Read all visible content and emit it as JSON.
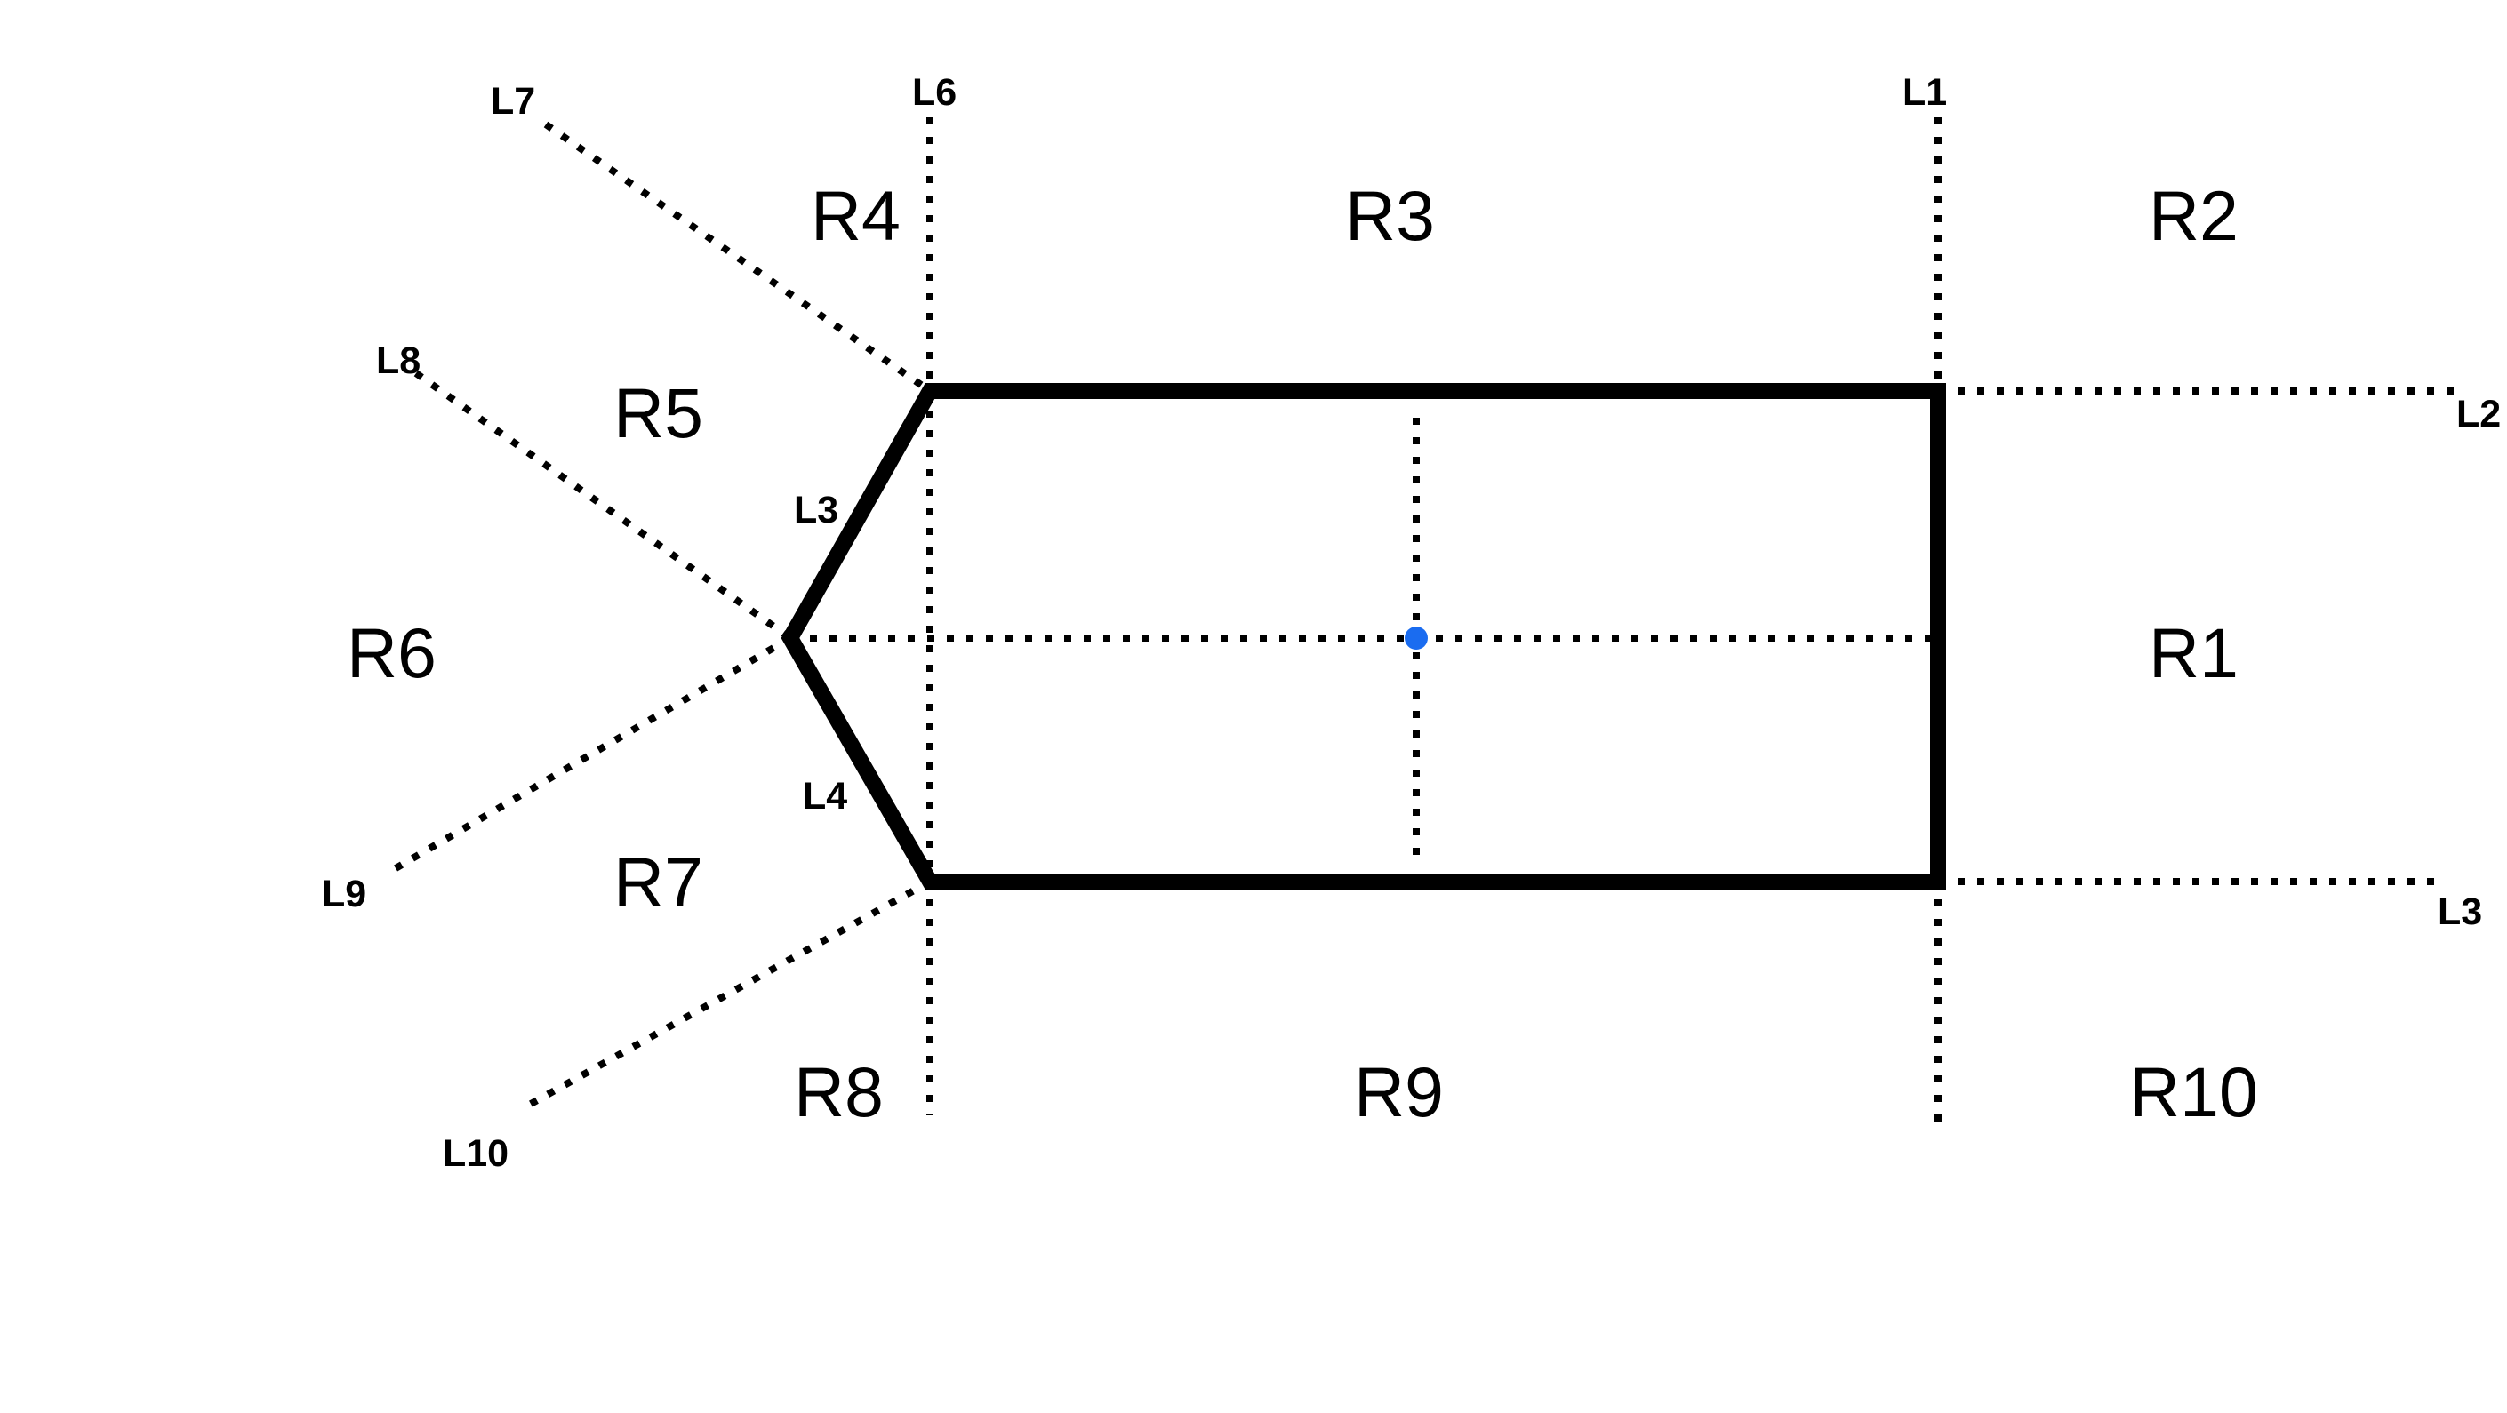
{
  "diagram": {
    "line_labels": {
      "l1": "L1",
      "l2": "L2",
      "l3_edge": "L3",
      "l3_right": "L3",
      "l4": "L4",
      "l6": "L6",
      "l7": "L7",
      "l8": "L8",
      "l9": "L9",
      "l10": "L10"
    },
    "regions": {
      "r1": "R1",
      "r2": "R2",
      "r3": "R3",
      "r4": "R4",
      "r5": "R5",
      "r6": "R6",
      "r7": "R7",
      "r8": "R8",
      "r9": "R9",
      "r10": "R10"
    },
    "colors": {
      "outline": "#000000",
      "guides": "#000000",
      "center_point": "#1a6cf0",
      "background": "#ffffff"
    }
  }
}
